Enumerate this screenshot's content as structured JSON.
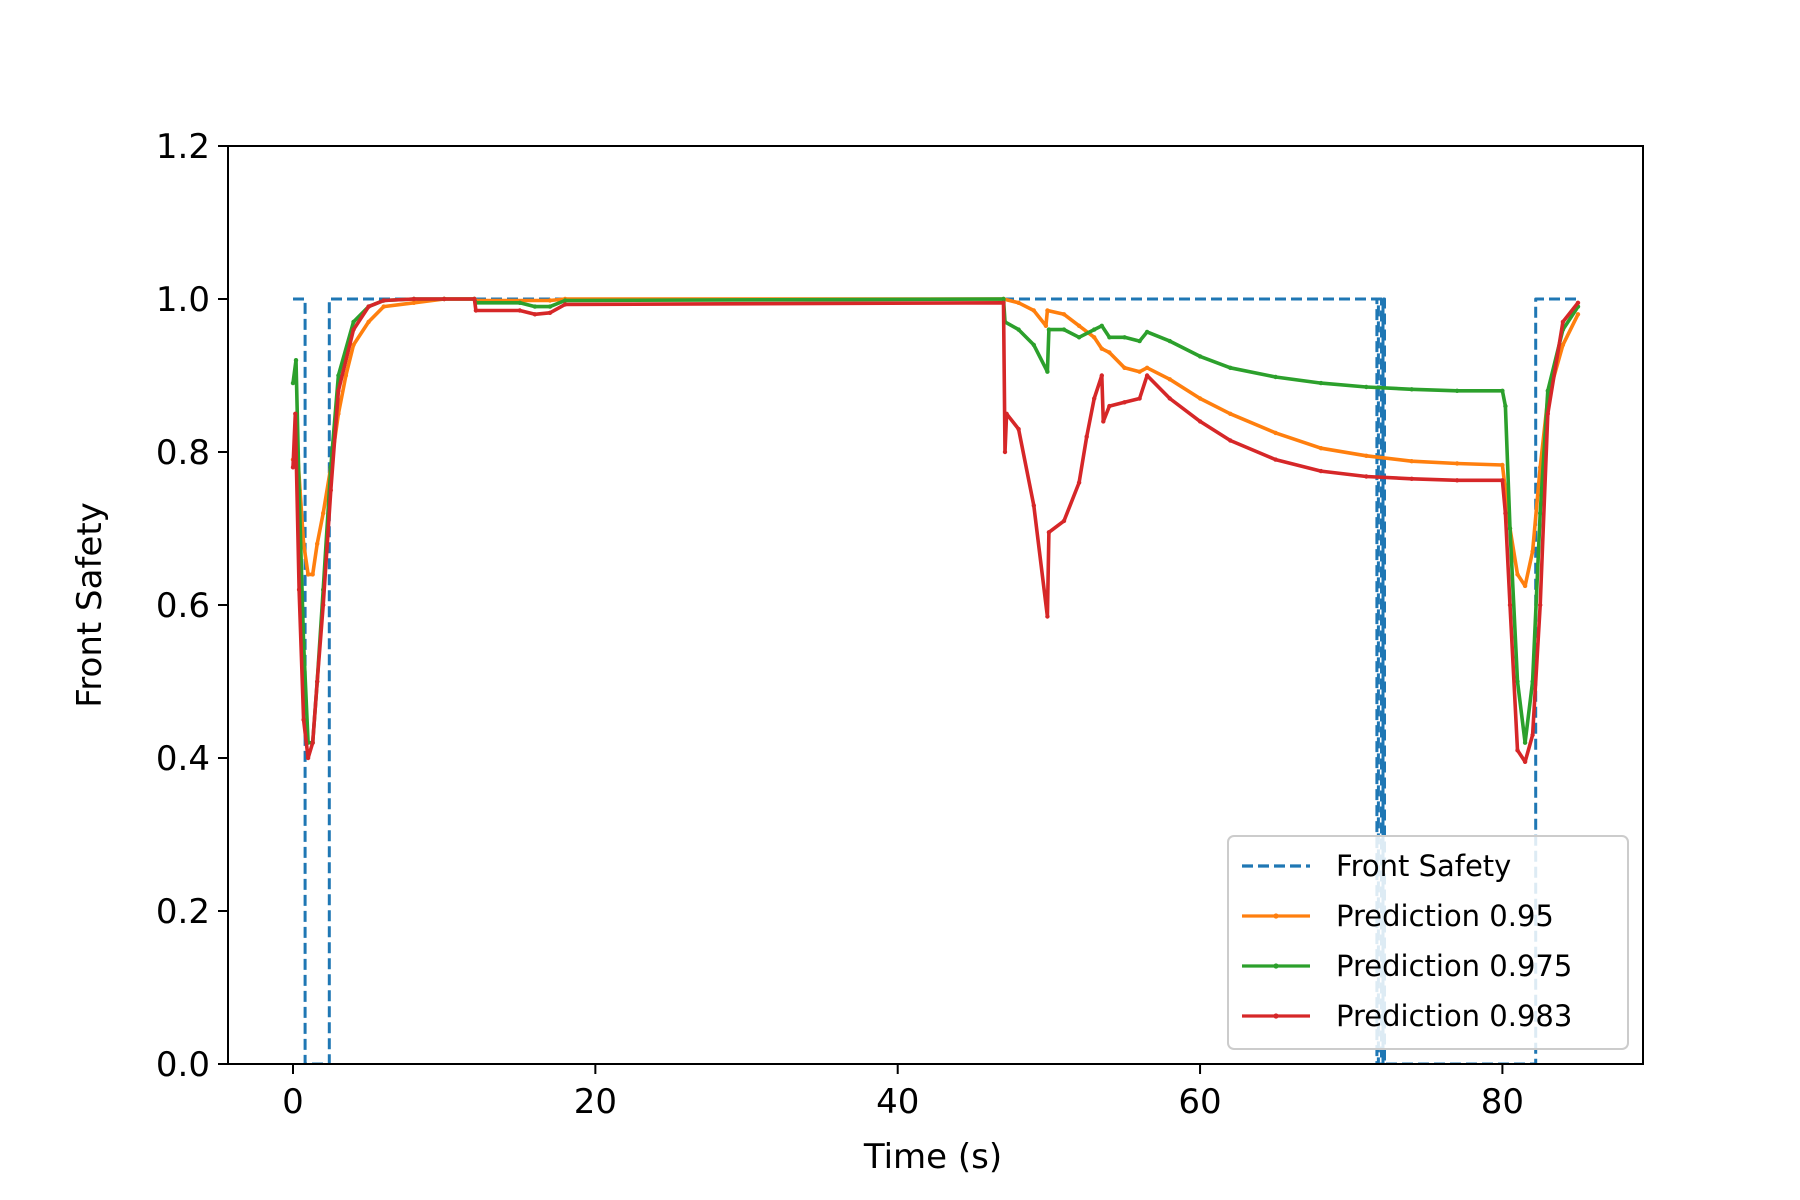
{
  "chart_data": {
    "type": "line",
    "xlabel": "Time (s)",
    "ylabel": "Front Safety",
    "xlim": [
      -4.3,
      89.3
    ],
    "ylim": [
      0,
      1.2
    ],
    "xticks": [
      0,
      20,
      40,
      60,
      80
    ],
    "yticks": [
      0.0,
      0.2,
      0.4,
      0.6,
      0.8,
      1.0,
      1.2
    ],
    "grid": false,
    "legend_position": "lower-right",
    "colors": {
      "front_safety": "#1f77b4",
      "pred_095": "#ff7f0e",
      "pred_0975": "#2ca02c",
      "pred_0983": "#d62728"
    },
    "series": [
      {
        "name": "Front Safety",
        "style": "dashed",
        "color": "#1f77b4",
        "x": [
          0,
          0.8,
          0.8,
          2.4,
          2.4,
          71.7,
          71.7,
          71.8,
          71.8,
          72.0,
          72.0,
          72.1,
          72.1,
          72.2,
          72.2,
          82.2,
          82.2,
          85.0
        ],
        "y": [
          1.0,
          1.0,
          0.0,
          0.0,
          1.0,
          1.0,
          0.0,
          0.0,
          1.0,
          1.0,
          0.0,
          0.0,
          1.0,
          1.0,
          0.0,
          0.0,
          1.0,
          1.0
        ]
      },
      {
        "name": "Prediction 0.95",
        "style": "solid",
        "color": "#ff7f0e",
        "x": [
          0,
          0.3,
          0.7,
          1.0,
          1.3,
          1.6,
          2.0,
          2.5,
          3.0,
          3.5,
          4.0,
          5.0,
          6.0,
          8.0,
          10.0,
          12.0,
          12.1,
          17.0,
          18.0,
          47.0,
          48.0,
          49.0,
          49.8,
          49.9,
          51.0,
          52.0,
          53.0,
          53.5,
          54.0,
          55.0,
          56.0,
          56.5,
          58.0,
          60.0,
          62.0,
          65.0,
          68.0,
          71.0,
          74.0,
          77.0,
          80.0,
          80.2,
          80.5,
          81.0,
          81.5,
          82.0,
          82.5,
          83.0,
          84.0,
          85.0
        ],
        "y": [
          0.79,
          0.8,
          0.68,
          0.64,
          0.64,
          0.68,
          0.72,
          0.78,
          0.85,
          0.9,
          0.94,
          0.97,
          0.99,
          0.995,
          1.0,
          1.0,
          0.998,
          0.998,
          1.0,
          1.0,
          0.995,
          0.985,
          0.965,
          0.985,
          0.98,
          0.965,
          0.95,
          0.935,
          0.93,
          0.91,
          0.905,
          0.91,
          0.895,
          0.87,
          0.85,
          0.825,
          0.805,
          0.795,
          0.788,
          0.785,
          0.783,
          0.75,
          0.7,
          0.64,
          0.625,
          0.67,
          0.78,
          0.87,
          0.94,
          0.98
        ]
      },
      {
        "name": "Prediction 0.975",
        "style": "solid",
        "color": "#2ca02c",
        "x": [
          0,
          0.2,
          0.4,
          0.7,
          1.0,
          1.3,
          1.6,
          2.0,
          2.5,
          3.0,
          4.0,
          5.0,
          6.0,
          8.0,
          10.0,
          12.0,
          12.1,
          15.0,
          16.0,
          17.0,
          18.0,
          47.0,
          47.1,
          48.0,
          49.0,
          49.9,
          50.0,
          51.0,
          52.0,
          53.0,
          53.5,
          54.0,
          55.0,
          56.0,
          56.5,
          58.0,
          60.0,
          62.0,
          65.0,
          68.0,
          71.0,
          74.0,
          77.0,
          80.0,
          80.2,
          80.5,
          81.0,
          81.5,
          82.0,
          82.5,
          83.0,
          84.0,
          85.0
        ],
        "y": [
          0.89,
          0.92,
          0.75,
          0.55,
          0.42,
          0.42,
          0.5,
          0.62,
          0.78,
          0.9,
          0.97,
          0.99,
          0.998,
          1.0,
          1.0,
          1.0,
          0.995,
          0.995,
          0.99,
          0.99,
          0.998,
          1.0,
          0.97,
          0.96,
          0.94,
          0.905,
          0.96,
          0.96,
          0.95,
          0.96,
          0.965,
          0.95,
          0.95,
          0.945,
          0.957,
          0.945,
          0.925,
          0.91,
          0.898,
          0.89,
          0.885,
          0.882,
          0.88,
          0.88,
          0.86,
          0.7,
          0.5,
          0.42,
          0.5,
          0.72,
          0.88,
          0.96,
          0.99
        ]
      },
      {
        "name": "Prediction 0.983",
        "style": "solid",
        "color": "#d62728",
        "x": [
          0,
          0.15,
          0.4,
          0.7,
          1.0,
          1.3,
          1.6,
          2.0,
          2.5,
          3.0,
          4.0,
          5.0,
          6.0,
          8.0,
          10.0,
          12.0,
          12.1,
          15.0,
          16.0,
          17.0,
          18.0,
          47.0,
          47.1,
          47.2,
          48.0,
          49.0,
          49.9,
          50.0,
          51.0,
          52.0,
          52.5,
          53.0,
          53.5,
          53.6,
          54.0,
          55.0,
          56.0,
          56.5,
          58.0,
          60.0,
          62.0,
          65.0,
          68.0,
          71.0,
          74.0,
          77.0,
          80.0,
          80.2,
          80.5,
          81.0,
          81.5,
          82.0,
          82.5,
          83.0,
          84.0,
          85.0
        ],
        "y": [
          0.78,
          0.85,
          0.62,
          0.45,
          0.4,
          0.42,
          0.5,
          0.6,
          0.75,
          0.88,
          0.96,
          0.99,
          0.998,
          1.0,
          1.0,
          1.0,
          0.985,
          0.985,
          0.98,
          0.982,
          0.993,
          0.995,
          0.8,
          0.85,
          0.83,
          0.73,
          0.585,
          0.695,
          0.71,
          0.76,
          0.82,
          0.87,
          0.9,
          0.84,
          0.86,
          0.865,
          0.87,
          0.9,
          0.87,
          0.84,
          0.815,
          0.79,
          0.775,
          0.768,
          0.765,
          0.763,
          0.763,
          0.72,
          0.6,
          0.41,
          0.395,
          0.43,
          0.6,
          0.85,
          0.97,
          0.995
        ]
      }
    ]
  }
}
